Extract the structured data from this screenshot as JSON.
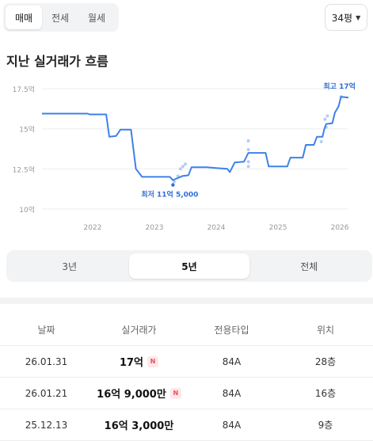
{
  "deal_tabs": [
    {
      "label": "매매",
      "active": true
    },
    {
      "label": "전세",
      "active": false
    },
    {
      "label": "월세",
      "active": false
    }
  ],
  "size_select": {
    "value": "34평"
  },
  "section_title": "지난 실거래가 흐름",
  "chart_data": {
    "type": "line",
    "title": "",
    "xlabel": "",
    "ylabel": "",
    "x_ticks": [
      "2022",
      "2023",
      "2024",
      "2025",
      "2026"
    ],
    "y_ticks": [
      {
        "value": 10,
        "label": "10억"
      },
      {
        "value": 12.5,
        "label": "12.5억"
      },
      {
        "value": 15,
        "label": "15억"
      },
      {
        "value": 17.5,
        "label": "17.5억"
      }
    ],
    "ylim": [
      9.6,
      18.0
    ],
    "xlim": [
      2021.18,
      2026.14
    ],
    "grid": "horizontal",
    "line_color": "#3c82e8",
    "dot_color": "#b5cdf2",
    "series": [
      {
        "points": [
          [
            2021.18,
            15.95
          ],
          [
            2021.92,
            15.95
          ],
          [
            2021.95,
            15.9
          ],
          [
            2022.22,
            15.9
          ],
          [
            2022.27,
            14.5
          ],
          [
            2022.38,
            14.55
          ],
          [
            2022.45,
            14.95
          ],
          [
            2022.62,
            14.95
          ],
          [
            2022.7,
            12.5
          ],
          [
            2022.8,
            12.0
          ],
          [
            2023.25,
            12.0
          ],
          [
            2023.3,
            11.8
          ],
          [
            2023.45,
            12.05
          ],
          [
            2023.55,
            12.1
          ],
          [
            2023.6,
            12.6
          ],
          [
            2023.85,
            12.6
          ],
          [
            2024.0,
            12.55
          ],
          [
            2024.18,
            12.5
          ],
          [
            2024.22,
            12.3
          ],
          [
            2024.3,
            12.9
          ],
          [
            2024.45,
            12.95
          ],
          [
            2024.52,
            13.5
          ],
          [
            2024.8,
            13.5
          ],
          [
            2024.85,
            12.65
          ],
          [
            2025.15,
            12.65
          ],
          [
            2025.2,
            13.2
          ],
          [
            2025.4,
            13.2
          ],
          [
            2025.45,
            14.0
          ],
          [
            2025.58,
            14.0
          ],
          [
            2025.63,
            14.5
          ],
          [
            2025.72,
            14.5
          ],
          [
            2025.75,
            15.0
          ],
          [
            2025.78,
            15.3
          ],
          [
            2025.88,
            15.35
          ],
          [
            2025.92,
            16.0
          ],
          [
            2025.98,
            16.4
          ],
          [
            2026.02,
            17.0
          ],
          [
            2026.14,
            16.95
          ]
        ]
      }
    ],
    "scatter": [
      [
        2023.3,
        11.5
      ],
      [
        2023.32,
        11.7
      ],
      [
        2023.38,
        12.05
      ],
      [
        2023.42,
        12.5
      ],
      [
        2023.46,
        12.65
      ],
      [
        2023.5,
        12.8
      ],
      [
        2024.52,
        14.25
      ],
      [
        2024.52,
        13.7
      ],
      [
        2024.52,
        12.95
      ],
      [
        2024.52,
        12.65
      ],
      [
        2025.7,
        14.2
      ],
      [
        2025.76,
        15.6
      ],
      [
        2025.78,
        15.1
      ],
      [
        2025.8,
        15.8
      ],
      [
        2026.02,
        17.0
      ]
    ],
    "annotations": [
      {
        "label": "최고 17억",
        "x": 2026.02,
        "y": 17.0,
        "type": "max"
      },
      {
        "label": "최저 11억 5,000",
        "x": 2023.3,
        "y": 11.5,
        "type": "min"
      }
    ]
  },
  "range_tabs": [
    {
      "label": "3년",
      "active": false
    },
    {
      "label": "5년",
      "active": true
    },
    {
      "label": "전체",
      "active": false
    }
  ],
  "table": {
    "headers": [
      "날짜",
      "실거래가",
      "전용타입",
      "위치"
    ],
    "rows": [
      {
        "date": "26.01.31",
        "price": "17억",
        "is_new": true,
        "type": "84A",
        "floor": "28층"
      },
      {
        "date": "26.01.21",
        "price": "16억 9,000만",
        "is_new": true,
        "type": "84A",
        "floor": "16층"
      },
      {
        "date": "25.12.13",
        "price": "16억 3,000만",
        "is_new": false,
        "type": "84A",
        "floor": "9층"
      }
    ],
    "new_badge_label": "N"
  }
}
